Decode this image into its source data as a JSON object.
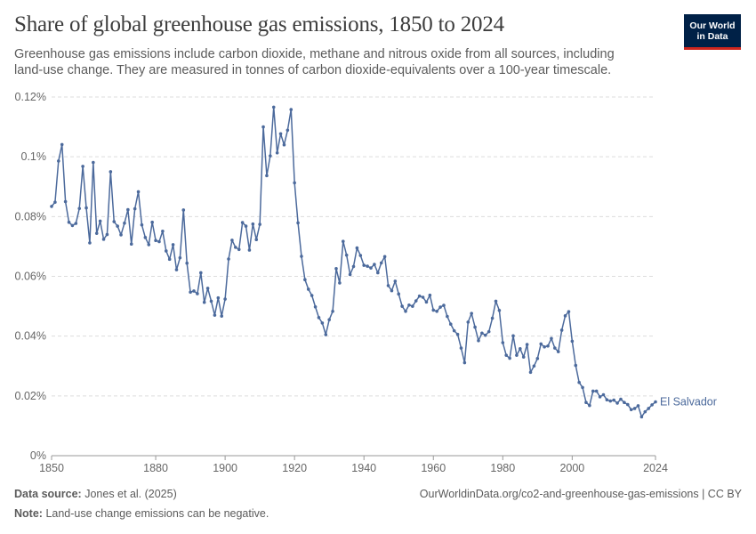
{
  "header": {
    "title": "Share of global greenhouse gas emissions, 1850 to 2024",
    "subtitle": "Greenhouse gas emissions include carbon dioxide, methane and nitrous oxide from all sources, including land-use change. They are measured in tonnes of carbon dioxide-equivalents over a 100-year timescale.",
    "logo_line1": "Our World",
    "logo_line2": "in Data"
  },
  "footer": {
    "source_label": "Data source:",
    "source_text": "Jones et al. (2025)",
    "note_label": "Note:",
    "note_text": "Land-use change emissions can be negative.",
    "url": "OurWorldinData.org/co2-and-greenhouse-gas-emissions | CC BY"
  },
  "colors": {
    "line": "#4c6a9c",
    "grid": "#dddddd",
    "text": "#5b5b5b",
    "logo_bg": "#002147",
    "logo_accent": "#ce261e"
  },
  "chart_data": {
    "type": "line",
    "title": "Share of global greenhouse gas emissions, 1850 to 2024",
    "xlabel": "",
    "ylabel": "",
    "xlim": [
      1850,
      2024
    ],
    "ylim": [
      0,
      0.12
    ],
    "x_ticks": [
      1850,
      1880,
      1900,
      1920,
      1940,
      1960,
      1980,
      2000,
      2024
    ],
    "x_tick_labels": [
      "1850",
      "1880",
      "1900",
      "1920",
      "1940",
      "1960",
      "1980",
      "2000",
      "2024"
    ],
    "y_ticks": [
      0,
      0.02,
      0.04,
      0.06,
      0.08,
      0.1,
      0.12
    ],
    "y_tick_labels": [
      "0%",
      "0.02%",
      "0.04%",
      "0.06%",
      "0.08%",
      "0.1%",
      "0.12%"
    ],
    "grid": "horizontal dashed",
    "series": [
      {
        "name": "El Salvador",
        "color": "#4c6a9c",
        "x": [
          1850,
          1851,
          1852,
          1853,
          1854,
          1855,
          1856,
          1857,
          1858,
          1859,
          1860,
          1861,
          1862,
          1863,
          1864,
          1865,
          1866,
          1867,
          1868,
          1869,
          1870,
          1871,
          1872,
          1873,
          1874,
          1875,
          1876,
          1877,
          1878,
          1879,
          1880,
          1881,
          1882,
          1883,
          1884,
          1885,
          1886,
          1887,
          1888,
          1889,
          1890,
          1891,
          1892,
          1893,
          1894,
          1895,
          1896,
          1897,
          1898,
          1899,
          1900,
          1901,
          1902,
          1903,
          1904,
          1905,
          1906,
          1907,
          1908,
          1909,
          1910,
          1911,
          1912,
          1913,
          1914,
          1915,
          1916,
          1917,
          1918,
          1919,
          1920,
          1921,
          1922,
          1923,
          1924,
          1925,
          1926,
          1927,
          1928,
          1929,
          1930,
          1931,
          1932,
          1933,
          1934,
          1935,
          1936,
          1937,
          1938,
          1939,
          1940,
          1941,
          1942,
          1943,
          1944,
          1945,
          1946,
          1947,
          1948,
          1949,
          1950,
          1951,
          1952,
          1953,
          1954,
          1955,
          1956,
          1957,
          1958,
          1959,
          1960,
          1961,
          1962,
          1963,
          1964,
          1965,
          1966,
          1967,
          1968,
          1969,
          1970,
          1971,
          1972,
          1973,
          1974,
          1975,
          1976,
          1977,
          1978,
          1979,
          1980,
          1981,
          1982,
          1983,
          1984,
          1985,
          1986,
          1987,
          1988,
          1989,
          1990,
          1991,
          1992,
          1993,
          1994,
          1995,
          1996,
          1997,
          1998,
          1999,
          2000,
          2001,
          2002,
          2003,
          2004,
          2005,
          2006,
          2007,
          2008,
          2009,
          2010,
          2011,
          2012,
          2013,
          2014,
          2015,
          2016,
          2017,
          2018,
          2019,
          2020,
          2021,
          2022,
          2023,
          2024
        ],
        "y": [
          0.0834,
          0.0848,
          0.0986,
          0.1041,
          0.085,
          0.0781,
          0.077,
          0.0777,
          0.0827,
          0.0968,
          0.0829,
          0.0712,
          0.0981,
          0.0744,
          0.0785,
          0.0724,
          0.074,
          0.095,
          0.0783,
          0.0768,
          0.0739,
          0.0778,
          0.0823,
          0.0708,
          0.0826,
          0.0883,
          0.0772,
          0.073,
          0.0706,
          0.0781,
          0.072,
          0.0716,
          0.0751,
          0.0685,
          0.0657,
          0.0706,
          0.0622,
          0.0662,
          0.0822,
          0.0644,
          0.0547,
          0.0551,
          0.0542,
          0.0612,
          0.0513,
          0.056,
          0.0517,
          0.047,
          0.0528,
          0.0467,
          0.0524,
          0.0658,
          0.0721,
          0.0697,
          0.069,
          0.078,
          0.0768,
          0.0688,
          0.0775,
          0.0723,
          0.0774,
          0.11,
          0.0937,
          0.1003,
          0.1166,
          0.1013,
          0.1077,
          0.104,
          0.1089,
          0.1158,
          0.0913,
          0.0779,
          0.0667,
          0.0589,
          0.0557,
          0.0536,
          0.0498,
          0.0462,
          0.0444,
          0.0405,
          0.0455,
          0.0483,
          0.0626,
          0.0578,
          0.0717,
          0.0671,
          0.0606,
          0.0633,
          0.0695,
          0.067,
          0.0637,
          0.0634,
          0.0628,
          0.064,
          0.0612,
          0.0645,
          0.0666,
          0.0569,
          0.0552,
          0.0584,
          0.0541,
          0.05,
          0.0483,
          0.0504,
          0.05,
          0.0518,
          0.0534,
          0.053,
          0.0514,
          0.0537,
          0.0487,
          0.0483,
          0.0497,
          0.0503,
          0.0466,
          0.044,
          0.0418,
          0.0406,
          0.036,
          0.0311,
          0.0447,
          0.0476,
          0.043,
          0.0385,
          0.041,
          0.0403,
          0.0415,
          0.046,
          0.0517,
          0.0486,
          0.0378,
          0.0336,
          0.0326,
          0.0401,
          0.0336,
          0.0358,
          0.033,
          0.0372,
          0.0279,
          0.03,
          0.0325,
          0.0374,
          0.0364,
          0.0367,
          0.0392,
          0.036,
          0.0348,
          0.042,
          0.0468,
          0.0482,
          0.0383,
          0.0302,
          0.0245,
          0.0228,
          0.0178,
          0.0168,
          0.0216,
          0.0216,
          0.0197,
          0.0204,
          0.0187,
          0.0183,
          0.0186,
          0.0176,
          0.0189,
          0.0178,
          0.0171,
          0.0154,
          0.0158,
          0.0167,
          0.013,
          0.0147,
          0.0158,
          0.017,
          0.018
        ]
      }
    ]
  }
}
